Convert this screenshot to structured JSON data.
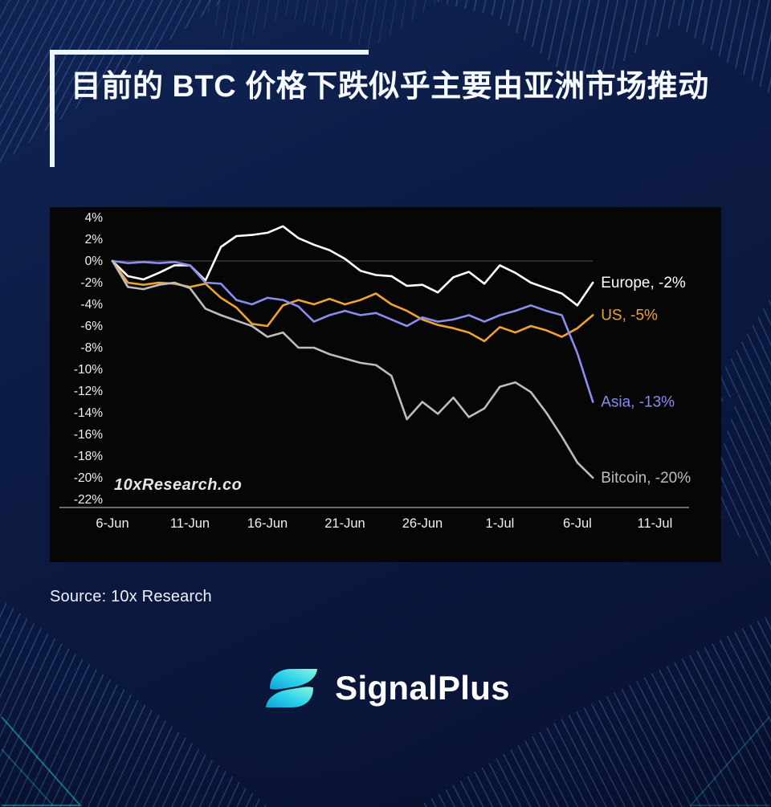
{
  "header": {
    "title": "目前的 BTC 价格下跌似乎主要由亚洲市场推动"
  },
  "footer": {
    "source": "Source: 10x Research",
    "brand": "SignalPlus"
  },
  "colors": {
    "background": "#0c1b44",
    "panel": "#060607",
    "accent_bar": "#edf5ff",
    "europe": "#ffffff",
    "us": "#f0a32f",
    "asia": "#8a8cf0",
    "bitcoin": "#bdbdbd",
    "logo_gradient_start": "#8df5dc",
    "logo_gradient_end": "#0fa0d8"
  },
  "chart_data": {
    "type": "line",
    "title": "",
    "watermark": "10xResearch.co",
    "x_unit": "day",
    "x_domain": [
      0,
      37
    ],
    "ylim": [
      -22,
      4
    ],
    "grid": false,
    "legend_position": "line-end-labels",
    "x_tick_days": [
      0,
      5,
      10,
      15,
      20,
      25,
      30,
      35
    ],
    "x_tick_labels": [
      "6-Jun",
      "11-Jun",
      "16-Jun",
      "21-Jun",
      "26-Jun",
      "1-Jul",
      "6-Jul",
      "11-Jul"
    ],
    "y_ticks": [
      4,
      2,
      0,
      -2,
      -4,
      -6,
      -8,
      -10,
      -12,
      -14,
      -16,
      -18,
      -20,
      -22
    ],
    "series": [
      {
        "name": "Europe",
        "label": "Europe, -2%",
        "final_value_pct": -2,
        "color": "#ffffff",
        "values": [
          0,
          -1.4,
          -1.7,
          -1.1,
          -0.4,
          -0.4,
          -1.8,
          1.3,
          2.3,
          2.4,
          2.6,
          3.2,
          2.1,
          1.5,
          1.0,
          0.2,
          -0.9,
          -1.3,
          -1.4,
          -2.3,
          -2.2,
          -2.9,
          -1.5,
          -1.0,
          -2.1,
          -0.4,
          -1.1,
          -2.0,
          -2.5,
          -3.0,
          -4.1,
          -2.0
        ]
      },
      {
        "name": "US",
        "label": "US, -5%",
        "final_value_pct": -5,
        "color": "#f0a32f",
        "values": [
          0,
          -2.0,
          -2.2,
          -2.0,
          -2.1,
          -2.4,
          -2.1,
          -3.4,
          -4.3,
          -5.8,
          -6.0,
          -4.1,
          -3.6,
          -4.0,
          -3.5,
          -4.0,
          -3.6,
          -3.0,
          -4.0,
          -4.6,
          -5.4,
          -5.9,
          -6.2,
          -6.6,
          -7.4,
          -6.1,
          -6.6,
          -6.0,
          -6.4,
          -7.0,
          -6.2,
          -5.0
        ]
      },
      {
        "name": "Asia",
        "label": "Asia, -13%",
        "final_value_pct": -13,
        "color": "#8a8cf0",
        "values": [
          0,
          -0.2,
          -0.1,
          -0.2,
          -0.1,
          -0.4,
          -2.0,
          -2.1,
          -3.6,
          -4.0,
          -3.4,
          -3.6,
          -4.2,
          -5.6,
          -5.0,
          -4.6,
          -5.0,
          -4.8,
          -5.4,
          -6.0,
          -5.2,
          -5.6,
          -5.4,
          -5.0,
          -5.6,
          -5.0,
          -4.6,
          -4.1,
          -4.6,
          -5.0,
          -8.5,
          -13.0
        ]
      },
      {
        "name": "Bitcoin",
        "label": "Bitcoin, -20%",
        "final_value_pct": -20,
        "color": "#bdbdbd",
        "values": [
          0,
          -2.4,
          -2.6,
          -2.2,
          -2.0,
          -2.5,
          -4.4,
          -5.0,
          -5.5,
          -6.0,
          -7.0,
          -6.6,
          -8.0,
          -8.0,
          -8.6,
          -9.0,
          -9.4,
          -9.6,
          -10.6,
          -14.6,
          -13.0,
          -14.1,
          -12.6,
          -14.4,
          -13.6,
          -11.6,
          -11.2,
          -12.1,
          -14.0,
          -16.2,
          -18.6,
          -20.0
        ]
      }
    ]
  }
}
